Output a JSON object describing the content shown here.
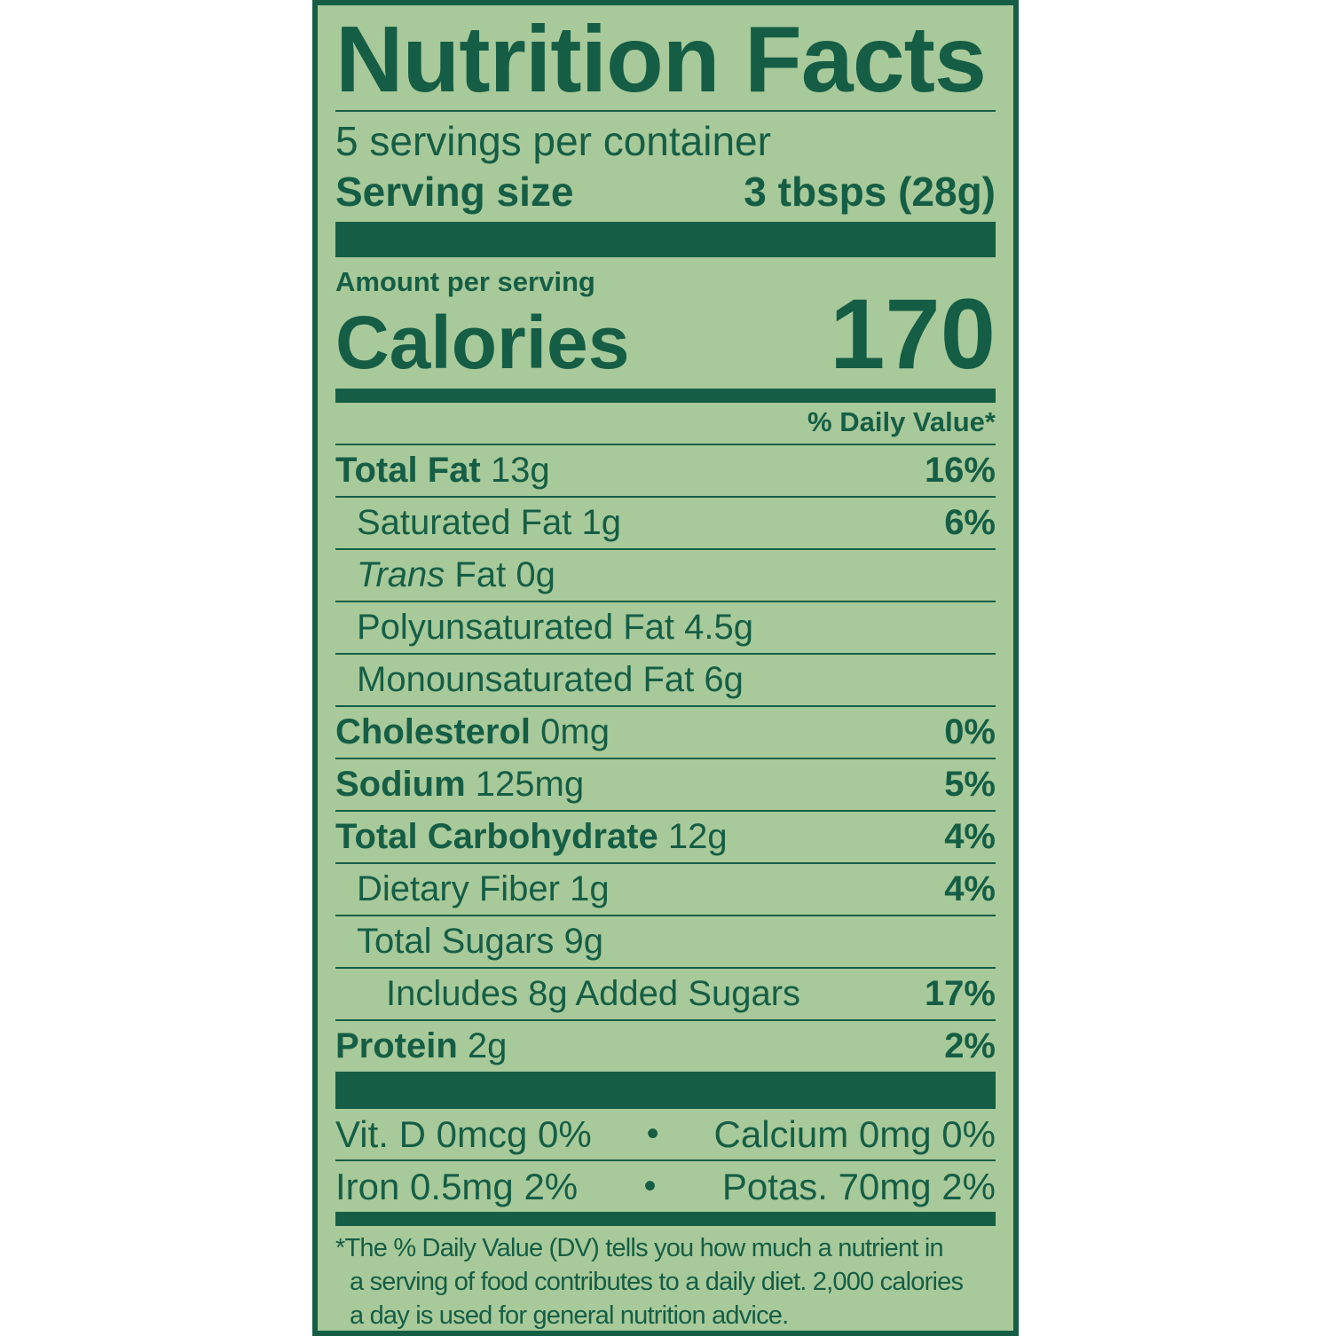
{
  "title": "Nutrition Facts",
  "servings_per_container": "5 servings per container",
  "serving_size": {
    "label": "Serving size",
    "value": "3 tbsps (28g)"
  },
  "amount_per_serving": "Amount per serving",
  "calories": {
    "label": "Calories",
    "value": "170"
  },
  "daily_value_header": "% Daily Value*",
  "nutrients": [
    {
      "name": "Total Fat",
      "amount": "13g",
      "dv": "16%",
      "bold": true,
      "indent": 0
    },
    {
      "name": "Saturated Fat",
      "amount": "1g",
      "dv": "6%",
      "bold": false,
      "indent": 1
    },
    {
      "name": "Trans",
      "name_suffix": "Fat",
      "amount": "0g",
      "dv": "",
      "bold": false,
      "indent": 1
    },
    {
      "name": "Polyunsaturated Fat",
      "amount": "4.5g",
      "dv": "",
      "bold": false,
      "indent": 1
    },
    {
      "name": "Monounsaturated Fat",
      "amount": "6g",
      "dv": "",
      "bold": false,
      "indent": 1
    },
    {
      "name": "Cholesterol",
      "amount": "0mg",
      "dv": "0%",
      "bold": true,
      "indent": 0
    },
    {
      "name": "Sodium",
      "amount": "125mg",
      "dv": "5%",
      "bold": true,
      "indent": 0
    },
    {
      "name": "Total Carbohydrate",
      "amount": "12g",
      "dv": "4%",
      "bold": true,
      "indent": 0
    },
    {
      "name": "Dietary Fiber",
      "amount": "1g",
      "dv": "4%",
      "bold": false,
      "indent": 1
    },
    {
      "name": "Total Sugars",
      "amount": "9g",
      "dv": "",
      "bold": false,
      "indent": 1
    },
    {
      "name": "Includes 8g Added Sugars",
      "amount": "",
      "dv": "17%",
      "bold": false,
      "indent": 2
    },
    {
      "name": "Protein",
      "amount": "2g",
      "dv": "2%",
      "bold": true,
      "indent": 0
    }
  ],
  "vitamins": [
    {
      "left": "Vit. D 0mcg 0%",
      "sep": "•",
      "right": "Calcium 0mg 0%"
    },
    {
      "left": "Iron 0.5mg 2%",
      "sep": "•",
      "right": "Potas. 70mg 2%"
    }
  ],
  "footnote": [
    "*The % Daily Value (DV) tells you how much a nutrient in",
    "a serving of food contributes to a daily diet. 2,000 calories",
    "a day is used for general nutrition advice."
  ],
  "colors": {
    "ink": "#155e45",
    "background": "#a8c99a"
  }
}
